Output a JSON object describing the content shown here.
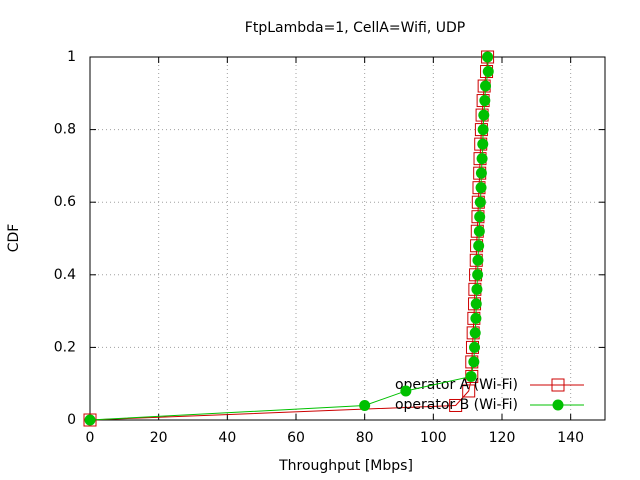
{
  "chart_data": {
    "type": "line",
    "title": "FtpLambda=1, CellA=Wifi, UDP",
    "x_label": "Throughput [Mbps]",
    "y_label": "CDF",
    "xlim": [
      0,
      150
    ],
    "xticks": [
      0,
      20,
      40,
      60,
      80,
      100,
      120,
      140
    ],
    "ylim": [
      0,
      1
    ],
    "yticks": [
      0,
      0.2,
      0.4,
      0.6,
      0.8,
      1
    ],
    "grid": true,
    "legend": "bottom-right",
    "series": [
      {
        "name": "operator A (Wi-Fi)",
        "color": "#cc0000",
        "marker": "square",
        "x": [
          0,
          106.5,
          110.3,
          111.2,
          111.2,
          111.4,
          111.6,
          111.8,
          112,
          112.1,
          112.3,
          112.5,
          112.6,
          112.8,
          113,
          113.1,
          113.3,
          113.5,
          113.6,
          113.8,
          114,
          114.2,
          114.5,
          114.8,
          115.5,
          115.8
        ],
        "values": [
          0,
          0.04,
          0.08,
          0.12,
          0.16,
          0.2,
          0.24,
          0.28,
          0.32,
          0.36,
          0.4,
          0.44,
          0.48,
          0.52,
          0.56,
          0.6,
          0.64,
          0.68,
          0.72,
          0.76,
          0.8,
          0.84,
          0.88,
          0.92,
          0.96,
          1
        ]
      },
      {
        "name": "operator B (Wi-Fi)",
        "color": "#00c000",
        "marker": "circle",
        "x": [
          0,
          80,
          92,
          111,
          111.8,
          112,
          112.2,
          112.4,
          112.5,
          112.7,
          112.9,
          113,
          113.2,
          113.4,
          113.5,
          113.7,
          113.9,
          114,
          114.2,
          114.4,
          114.5,
          114.7,
          115,
          115.2,
          116,
          115.8
        ],
        "values": [
          0,
          0.04,
          0.08,
          0.12,
          0.16,
          0.2,
          0.24,
          0.28,
          0.32,
          0.36,
          0.4,
          0.44,
          0.48,
          0.52,
          0.56,
          0.6,
          0.64,
          0.68,
          0.72,
          0.76,
          0.8,
          0.84,
          0.88,
          0.92,
          0.96,
          1
        ]
      }
    ]
  }
}
